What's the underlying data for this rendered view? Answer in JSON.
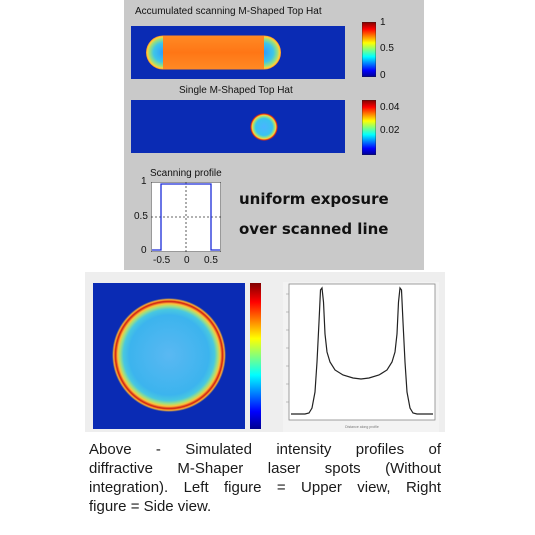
{
  "accumulated": {
    "title": "Accumulated scanning M-Shaped Top Hat",
    "colorbar_ticks": [
      "1",
      "0.5",
      "0"
    ]
  },
  "single": {
    "title": "Single M-Shaped Top Hat",
    "colorbar_ticks": [
      "0.04",
      "0.02"
    ]
  },
  "profile": {
    "title": "Scanning profile",
    "y_ticks": [
      "1",
      "0.5",
      "0"
    ],
    "x_ticks": [
      "-0.5",
      "0",
      "0.5"
    ]
  },
  "note": {
    "line1": "uniform exposure",
    "line2": "over scanned line"
  },
  "side_view": {
    "xlabel": "Distance along profile"
  },
  "caption": {
    "lines": [
      "Above - Simulated intensity profiles of",
      "diffractive M-Shaper laser spots (Without",
      "integration). Left figure = Upper view, Right",
      "figure = Side view."
    ]
  },
  "colors": {
    "panel_bg": "#c9c9c9",
    "field_blue": "#0a2bb4",
    "hot_orange": "#ff7a1a",
    "ring_red": "#b00000"
  }
}
